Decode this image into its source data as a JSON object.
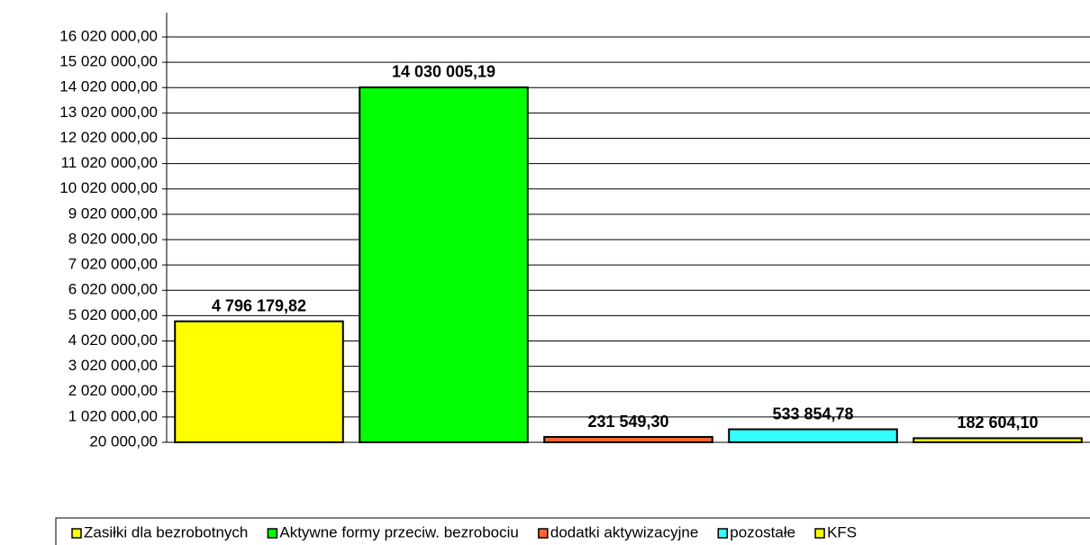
{
  "chart_data": {
    "type": "bar",
    "series": [
      {
        "name": "Zasiłki dla bezrobotnych",
        "color": "#ffff00",
        "values": [
          4796179.82
        ],
        "value_labels": [
          "4 796 179,82"
        ]
      },
      {
        "name": "Aktywne formy przeciw. bezrobociu",
        "color": "#00ff00",
        "values": [
          14030005.19
        ],
        "value_labels": [
          "14 030 005,19"
        ]
      },
      {
        "name": "dodatki aktywizacyjne",
        "color": "#ff6633",
        "values": [
          231549.3
        ],
        "value_labels": [
          "231 549,30"
        ]
      },
      {
        "name": "pozostałe",
        "color": "#33ffff",
        "values": [
          533854.78
        ],
        "value_labels": [
          "533 854,78"
        ]
      },
      {
        "name": "KFS",
        "color": "#ffff00",
        "values": [
          182604.1
        ],
        "value_labels": [
          "182 604,10"
        ]
      }
    ],
    "ylim": [
      20000,
      16980000
    ],
    "yticks": [
      {
        "value": 20000,
        "label": "20 000,00"
      },
      {
        "value": 1020000,
        "label": "1 020 000,00"
      },
      {
        "value": 2020000,
        "label": "2 020 000,00"
      },
      {
        "value": 3020000,
        "label": "3 020 000,00"
      },
      {
        "value": 4020000,
        "label": "4 020 000,00"
      },
      {
        "value": 5020000,
        "label": "5 020 000,00"
      },
      {
        "value": 6020000,
        "label": "6 020 000,00"
      },
      {
        "value": 7020000,
        "label": "7 020 000,00"
      },
      {
        "value": 8020000,
        "label": "8 020 000,00"
      },
      {
        "value": 9020000,
        "label": "9 020 000,00"
      },
      {
        "value": 10020000,
        "label": "10 020 000,00"
      },
      {
        "value": 11020000,
        "label": "11 020 000,00"
      },
      {
        "value": 12020000,
        "label": "12 020 000,00"
      },
      {
        "value": 13020000,
        "label": "13 020 000,00"
      },
      {
        "value": 14020000,
        "label": "14 020 000,00"
      },
      {
        "value": 15020000,
        "label": "15 020 000,00"
      },
      {
        "value": 16020000,
        "label": "16 020 000,00"
      }
    ],
    "grid": true,
    "legend": "bottom"
  }
}
